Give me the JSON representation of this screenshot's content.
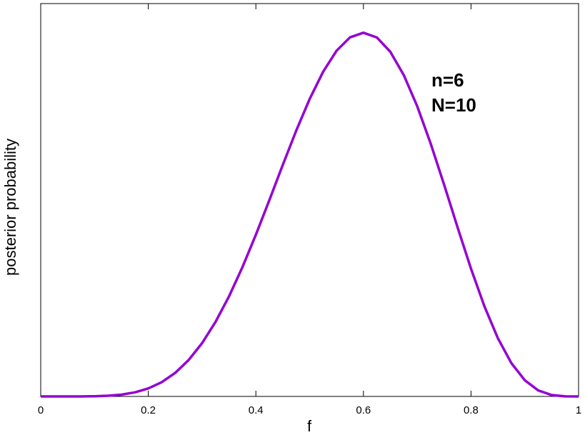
{
  "chart_data": {
    "type": "line",
    "x_label": "f",
    "y_label": "posterior probability",
    "annotations": [
      "n=6",
      "N=10"
    ],
    "x": [
      0,
      0.025,
      0.05,
      0.075,
      0.1,
      0.125,
      0.15,
      0.175,
      0.2,
      0.225,
      0.25,
      0.275,
      0.3,
      0.325,
      0.35,
      0.375,
      0.4,
      0.425,
      0.45,
      0.475,
      0.5,
      0.525,
      0.55,
      0.575,
      0.6,
      0.625,
      0.65,
      0.675,
      0.7,
      0.725,
      0.75,
      0.775,
      0.8,
      0.825,
      0.85,
      0.875,
      0.9,
      0.925,
      0.95,
      0.975,
      1
    ],
    "series": [
      {
        "color": "#9400d3",
        "values": [
          0,
          0,
          0,
          0.0003,
          0.0015,
          0.0052,
          0.0137,
          0.0307,
          0.0606,
          0.1081,
          0.1784,
          0.276,
          0.4043,
          0.5651,
          0.758,
          0.9802,
          1.2263,
          1.4881,
          1.7553,
          2.0157,
          2.2559,
          2.4623,
          2.6221,
          2.7237,
          2.759,
          2.7228,
          2.6143,
          2.4377,
          2.2013,
          1.9185,
          1.606,
          1.2828,
          0.9689,
          0.6831,
          0.4411,
          0.2531,
          0.1228,
          0.0458,
          0.0106,
          0.0008,
          0
        ]
      }
    ],
    "xlim": [
      0,
      1
    ],
    "xticks": [
      0,
      0.2,
      0.4,
      0.6,
      0.8,
      1
    ],
    "ylim": [
      0,
      2.98
    ]
  }
}
